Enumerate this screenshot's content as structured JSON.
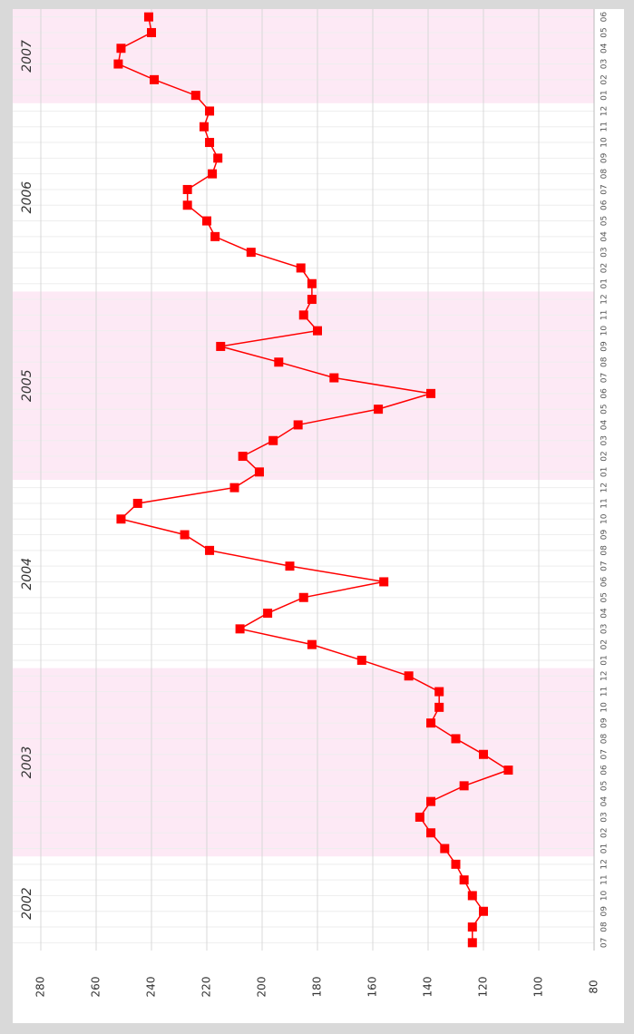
{
  "chart_data": {
    "type": "line",
    "categories": [
      "07",
      "08",
      "09",
      "10",
      "11",
      "12",
      "01",
      "02",
      "03",
      "04",
      "05",
      "06",
      "07",
      "08",
      "09",
      "10",
      "11",
      "12",
      "01",
      "02",
      "03",
      "04",
      "05",
      "06",
      "07",
      "08",
      "09",
      "10",
      "11",
      "12",
      "01",
      "02",
      "03",
      "04",
      "05",
      "06",
      "07",
      "08",
      "09",
      "10",
      "11",
      "12",
      "01",
      "02",
      "03",
      "04",
      "05",
      "06",
      "07",
      "08",
      "09",
      "10",
      "11",
      "12",
      "01",
      "02",
      "03",
      "04",
      "05",
      "06"
    ],
    "years": [
      "2002",
      "2003",
      "2004",
      "2005",
      "2006",
      "2007"
    ],
    "values": [
      124,
      124,
      120,
      124,
      127,
      130,
      134,
      139,
      143,
      139,
      127,
      111,
      120,
      130,
      139,
      136,
      136,
      147,
      164,
      182,
      208,
      198,
      185,
      156,
      190,
      219,
      228,
      251,
      245,
      210,
      201,
      207,
      196,
      187,
      158,
      139,
      174,
      194,
      215,
      180,
      185,
      182,
      182,
      186,
      204,
      217,
      220,
      227,
      227,
      218,
      216,
      219,
      221,
      219,
      224,
      239,
      252,
      251,
      240,
      241
    ],
    "color": "#ff0000",
    "band_color": "#fde9f5",
    "ylim": [
      80,
      280
    ],
    "yticks": [
      80,
      100,
      120,
      140,
      160,
      180,
      200,
      220,
      240,
      260,
      280
    ],
    "grid": true
  }
}
